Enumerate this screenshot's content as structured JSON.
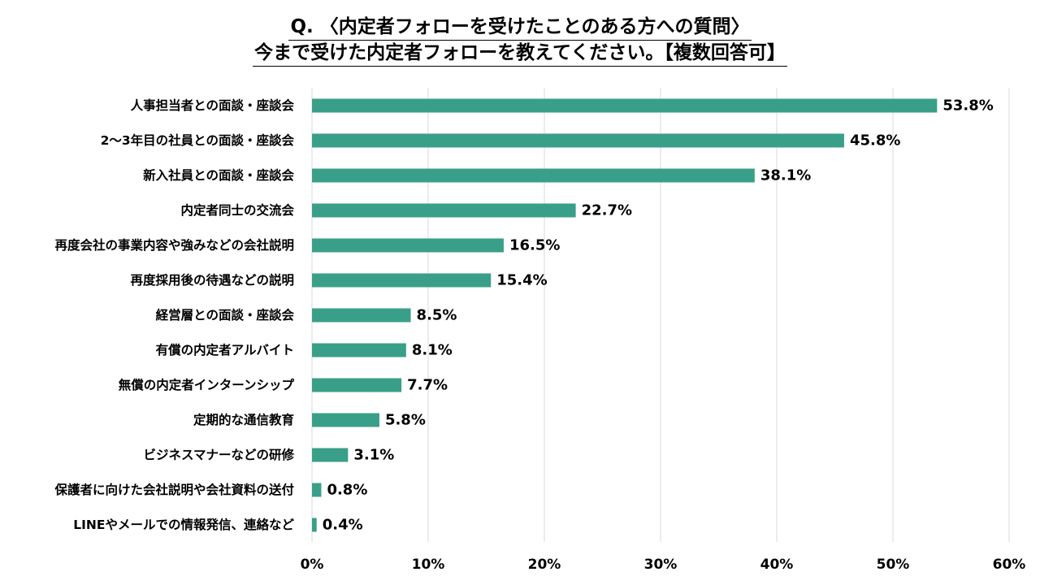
{
  "chart_data": {
    "type": "bar",
    "orientation": "horizontal",
    "title": [
      "Q. 〈内定者フォローを受けたことのある方への質問〉",
      "今まで受けた内定者フォローを教えてください。【複数回答可】"
    ],
    "categories": [
      "人事担当者との面談・座談会",
      "2〜3年目の社員との面談・座談会",
      "新入社員との面談・座談会",
      "内定者同士の交流会",
      "再度会社の事業内容や強みなどの会社説明",
      "再度採用後の待遇などの説明",
      "経営層との面談・座談会",
      "有償の内定者アルバイト",
      "無償の内定者インターンシップ",
      "定期的な通信教育",
      "ビジネスマナーなどの研修",
      "保護者に向けた会社説明や会社資料の送付",
      "LINEやメールでの情報発信、連絡など"
    ],
    "values": [
      53.8,
      45.8,
      38.1,
      22.7,
      16.5,
      15.4,
      8.5,
      8.1,
      7.7,
      5.8,
      3.1,
      0.8,
      0.4
    ],
    "value_labels": [
      "53.8%",
      "45.8%",
      "38.1%",
      "22.7%",
      "16.5%",
      "15.4%",
      "8.5%",
      "8.1%",
      "7.7%",
      "5.8%",
      "3.1%",
      "0.8%",
      "0.4%"
    ],
    "xlim": [
      0,
      60
    ],
    "x_ticks": [
      "0%",
      "10%",
      "20%",
      "30%",
      "40%",
      "50%",
      "60%"
    ],
    "grid": true,
    "legend": "none",
    "bar_color": "#3a9f88"
  }
}
